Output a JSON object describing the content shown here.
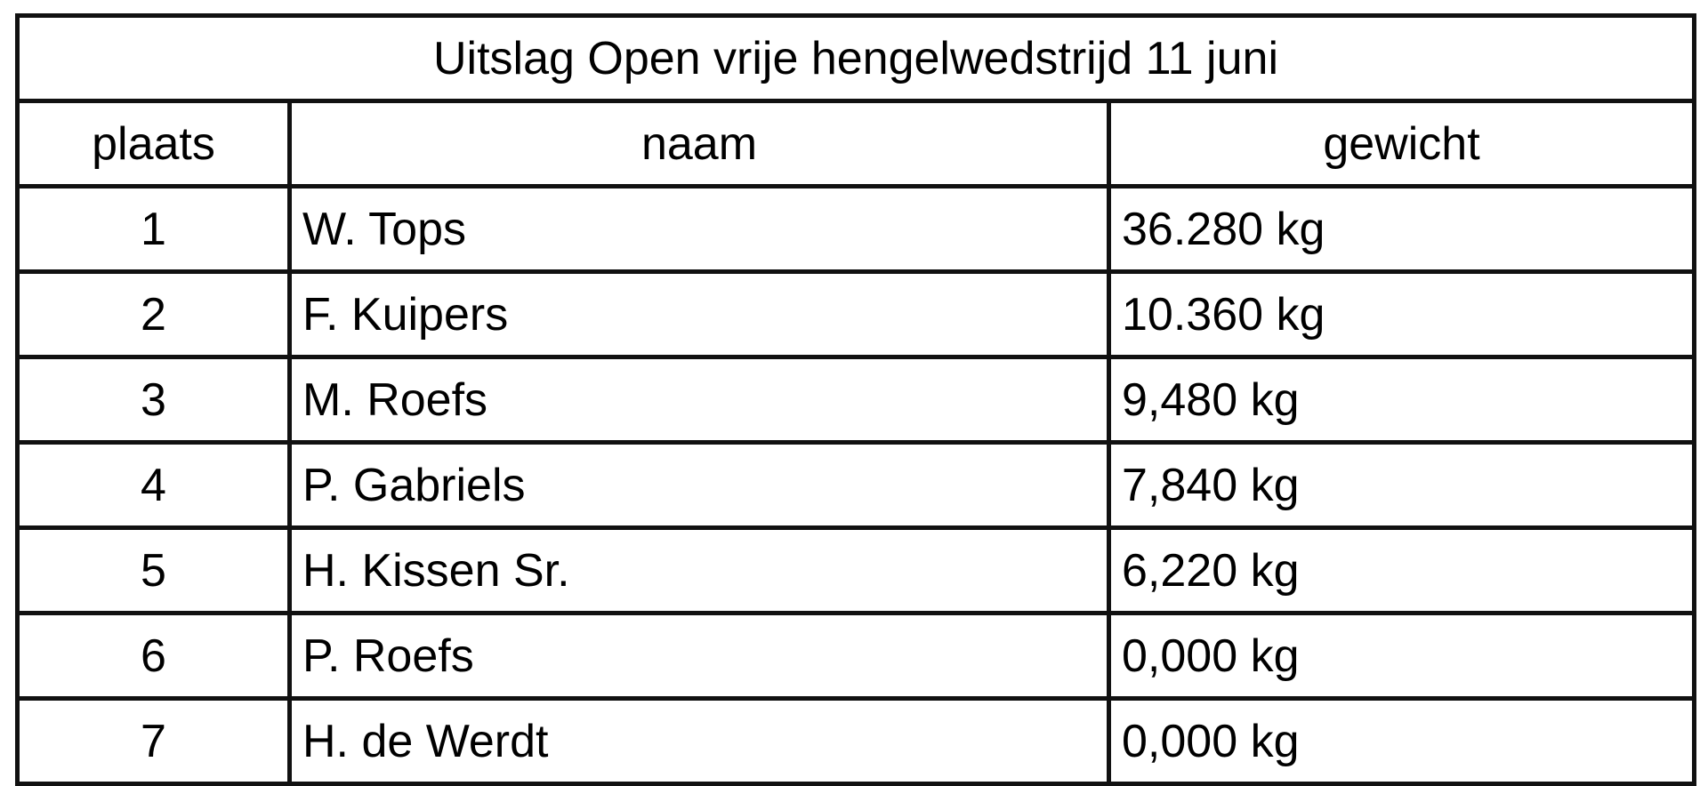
{
  "table": {
    "title": "Uitslag Open vrije hengelwedstrijd 11 juni",
    "headers": [
      "plaats",
      "naam",
      "gewicht"
    ],
    "rows": [
      [
        "1",
        "W. Tops",
        "36.280 kg"
      ],
      [
        "2",
        "F. Kuipers",
        "10.360 kg"
      ],
      [
        "3",
        "M. Roefs",
        "9,480 kg"
      ],
      [
        "4",
        "P. Gabriels",
        "7,840 kg"
      ],
      [
        "5",
        "H. Kissen Sr.",
        "6,220 kg"
      ],
      [
        "6",
        "P. Roefs",
        "0,000 kg"
      ],
      [
        "7",
        "H. de Werdt",
        "0,000 kg"
      ]
    ]
  }
}
